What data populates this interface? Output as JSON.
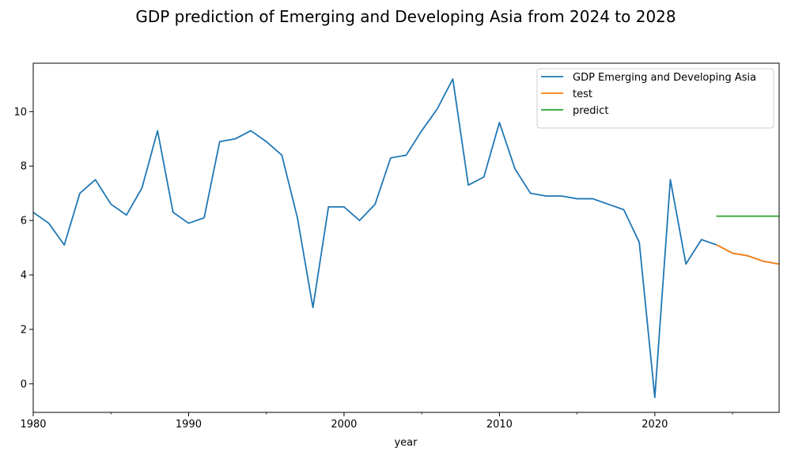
{
  "chart_data": {
    "type": "line",
    "title": "GDP prediction of Emerging and Developing Asia from 2024 to 2028",
    "xlabel": "year",
    "ylabel": "",
    "xlim": [
      1980,
      2028
    ],
    "ylim": [
      -1.05,
      11.78
    ],
    "x_ticks": [
      1980,
      1990,
      2000,
      2010,
      2020
    ],
    "y_ticks": [
      0,
      2,
      4,
      6,
      8,
      10
    ],
    "grid": false,
    "legend_position": "top-right",
    "series": [
      {
        "name": "GDP Emerging and Developing Asia",
        "color": "#1f77b4",
        "x": [
          1980,
          1981,
          1982,
          1983,
          1984,
          1985,
          1986,
          1987,
          1988,
          1989,
          1990,
          1991,
          1992,
          1993,
          1994,
          1995,
          1996,
          1997,
          1998,
          1999,
          2000,
          2001,
          2002,
          2003,
          2004,
          2005,
          2006,
          2007,
          2008,
          2009,
          2010,
          2011,
          2012,
          2013,
          2014,
          2015,
          2016,
          2017,
          2018,
          2019,
          2020,
          2021,
          2022,
          2023,
          2024,
          2025,
          2026,
          2027,
          2028
        ],
        "values": [
          6.3,
          5.9,
          5.1,
          7.0,
          7.5,
          6.6,
          6.2,
          7.2,
          9.3,
          6.3,
          5.9,
          6.1,
          8.9,
          9.0,
          9.3,
          8.9,
          8.4,
          6.1,
          2.8,
          6.5,
          6.5,
          6.0,
          6.6,
          8.3,
          8.4,
          9.3,
          10.1,
          11.2,
          7.3,
          7.6,
          9.6,
          7.9,
          7.0,
          6.9,
          6.9,
          6.8,
          6.8,
          6.6,
          6.4,
          5.2,
          -0.5,
          7.5,
          4.4,
          5.3,
          5.1,
          4.8,
          4.7,
          4.5,
          4.4
        ]
      },
      {
        "name": "test",
        "color": "#ff7f0e",
        "x": [
          2024,
          2025,
          2026,
          2027,
          2028
        ],
        "values": [
          5.1,
          4.8,
          4.7,
          4.5,
          4.4
        ]
      },
      {
        "name": "predict",
        "color": "#2ca02c",
        "x": [
          2024,
          2025,
          2026,
          2027,
          2028
        ],
        "values": [
          6.16,
          6.16,
          6.16,
          6.16,
          6.16
        ]
      }
    ]
  }
}
